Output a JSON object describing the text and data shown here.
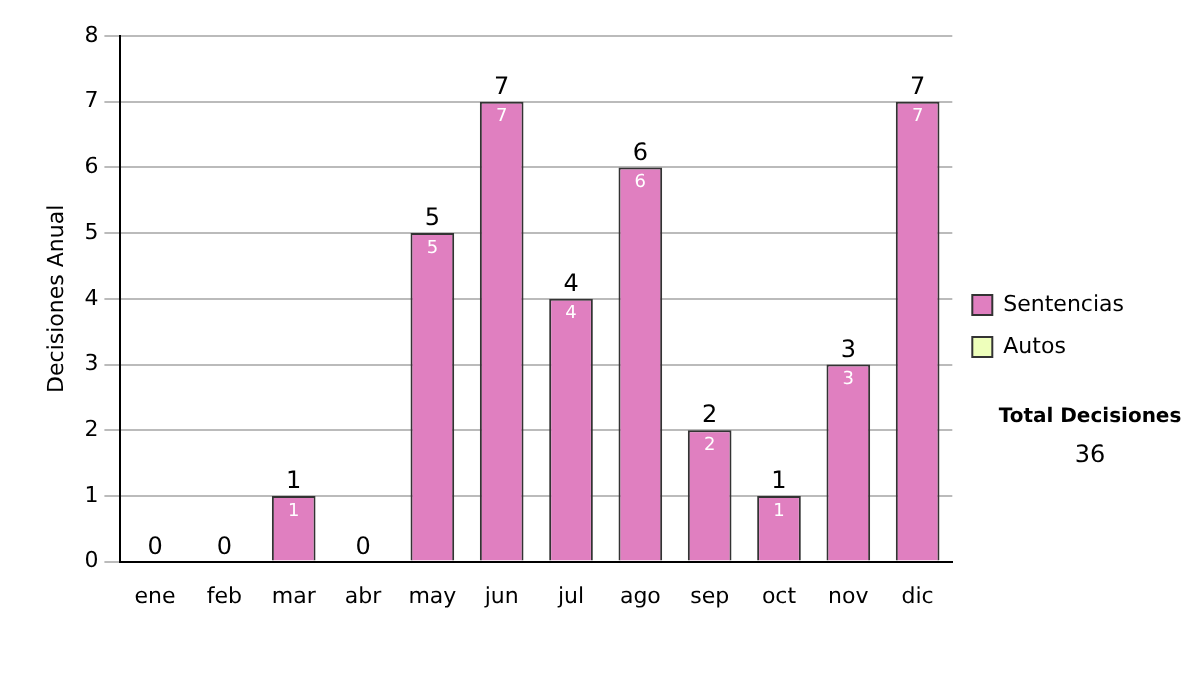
{
  "chart_data": {
    "type": "bar",
    "ylabel": "Decisiones Anual",
    "categories": [
      "ene",
      "feb",
      "mar",
      "abr",
      "may",
      "jun",
      "jul",
      "ago",
      "sep",
      "oct",
      "nov",
      "dic"
    ],
    "series": [
      {
        "name": "Sentencias",
        "color": "#e07fc0",
        "values": [
          0,
          0,
          1,
          0,
          5,
          7,
          4,
          6,
          2,
          1,
          3,
          7
        ],
        "value_labels": [
          null,
          null,
          "1",
          null,
          "5",
          "7",
          "4",
          "6",
          "2",
          "1",
          "3",
          "7"
        ]
      },
      {
        "name": "Autos",
        "color": "#eeffbb",
        "values": [
          0,
          0,
          0,
          0,
          0,
          0,
          0,
          0,
          0,
          0,
          0,
          0
        ]
      }
    ],
    "stacked": true,
    "totals": [
      "0",
      "0",
      "1",
      "0",
      "5",
      "7",
      "4",
      "6",
      "2",
      "1",
      "3",
      "7"
    ],
    "ylim": [
      0,
      8
    ],
    "yticks": [
      0,
      1,
      2,
      3,
      4,
      5,
      6,
      7,
      8
    ],
    "grid": "y",
    "legend": "right",
    "annotations": [
      "Total Decisiones",
      "36"
    ]
  }
}
